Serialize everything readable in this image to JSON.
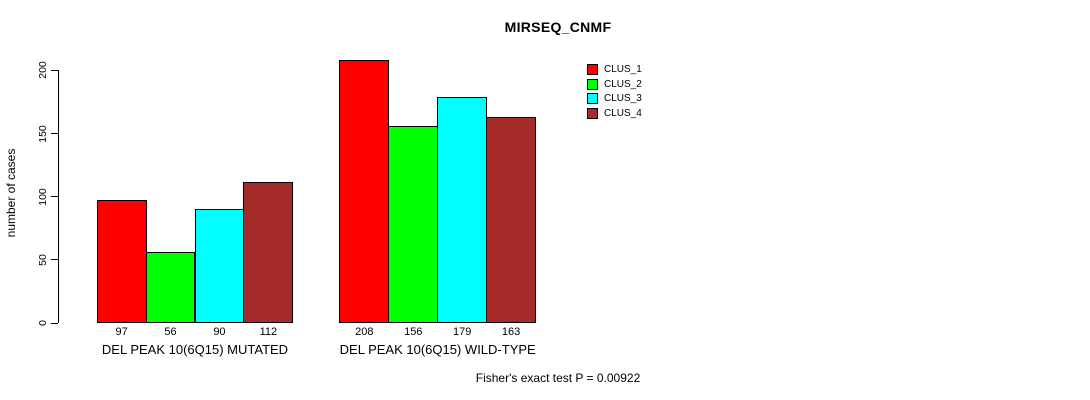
{
  "page": {
    "background": "#ffffff",
    "text_color": "#000000"
  },
  "chart_data": {
    "type": "bar",
    "title": "MIRSEQ_CNMF",
    "xlabel": "",
    "ylabel": "number of cases",
    "ylim": [
      0,
      200
    ],
    "yticks": [
      0,
      50,
      100,
      150,
      200
    ],
    "grid": false,
    "bar_borders_color": "#000000",
    "legend_position": "top-right",
    "categories": [
      "DEL PEAK 10(6Q15) MUTATED",
      "DEL PEAK 10(6Q15) WILD-TYPE"
    ],
    "series": [
      {
        "name": "CLUS_1",
        "color": "#FF0000",
        "values": [
          97,
          208
        ]
      },
      {
        "name": "CLUS_2",
        "color": "#00FF00",
        "values": [
          56,
          156
        ]
      },
      {
        "name": "CLUS_3",
        "color": "#00FFFF",
        "values": [
          90,
          179
        ]
      },
      {
        "name": "CLUS_4",
        "color": "#A52A2A",
        "values": [
          112,
          163
        ]
      }
    ],
    "bar_value_labels": {
      "DEL PEAK 10(6Q15) MUTATED": [
        97,
        56,
        90,
        112
      ],
      "DEL PEAK 10(6Q15) WILD-TYPE": [
        208,
        156,
        179,
        163
      ]
    },
    "footnote": "Fisher's exact test P = 0.00922"
  }
}
